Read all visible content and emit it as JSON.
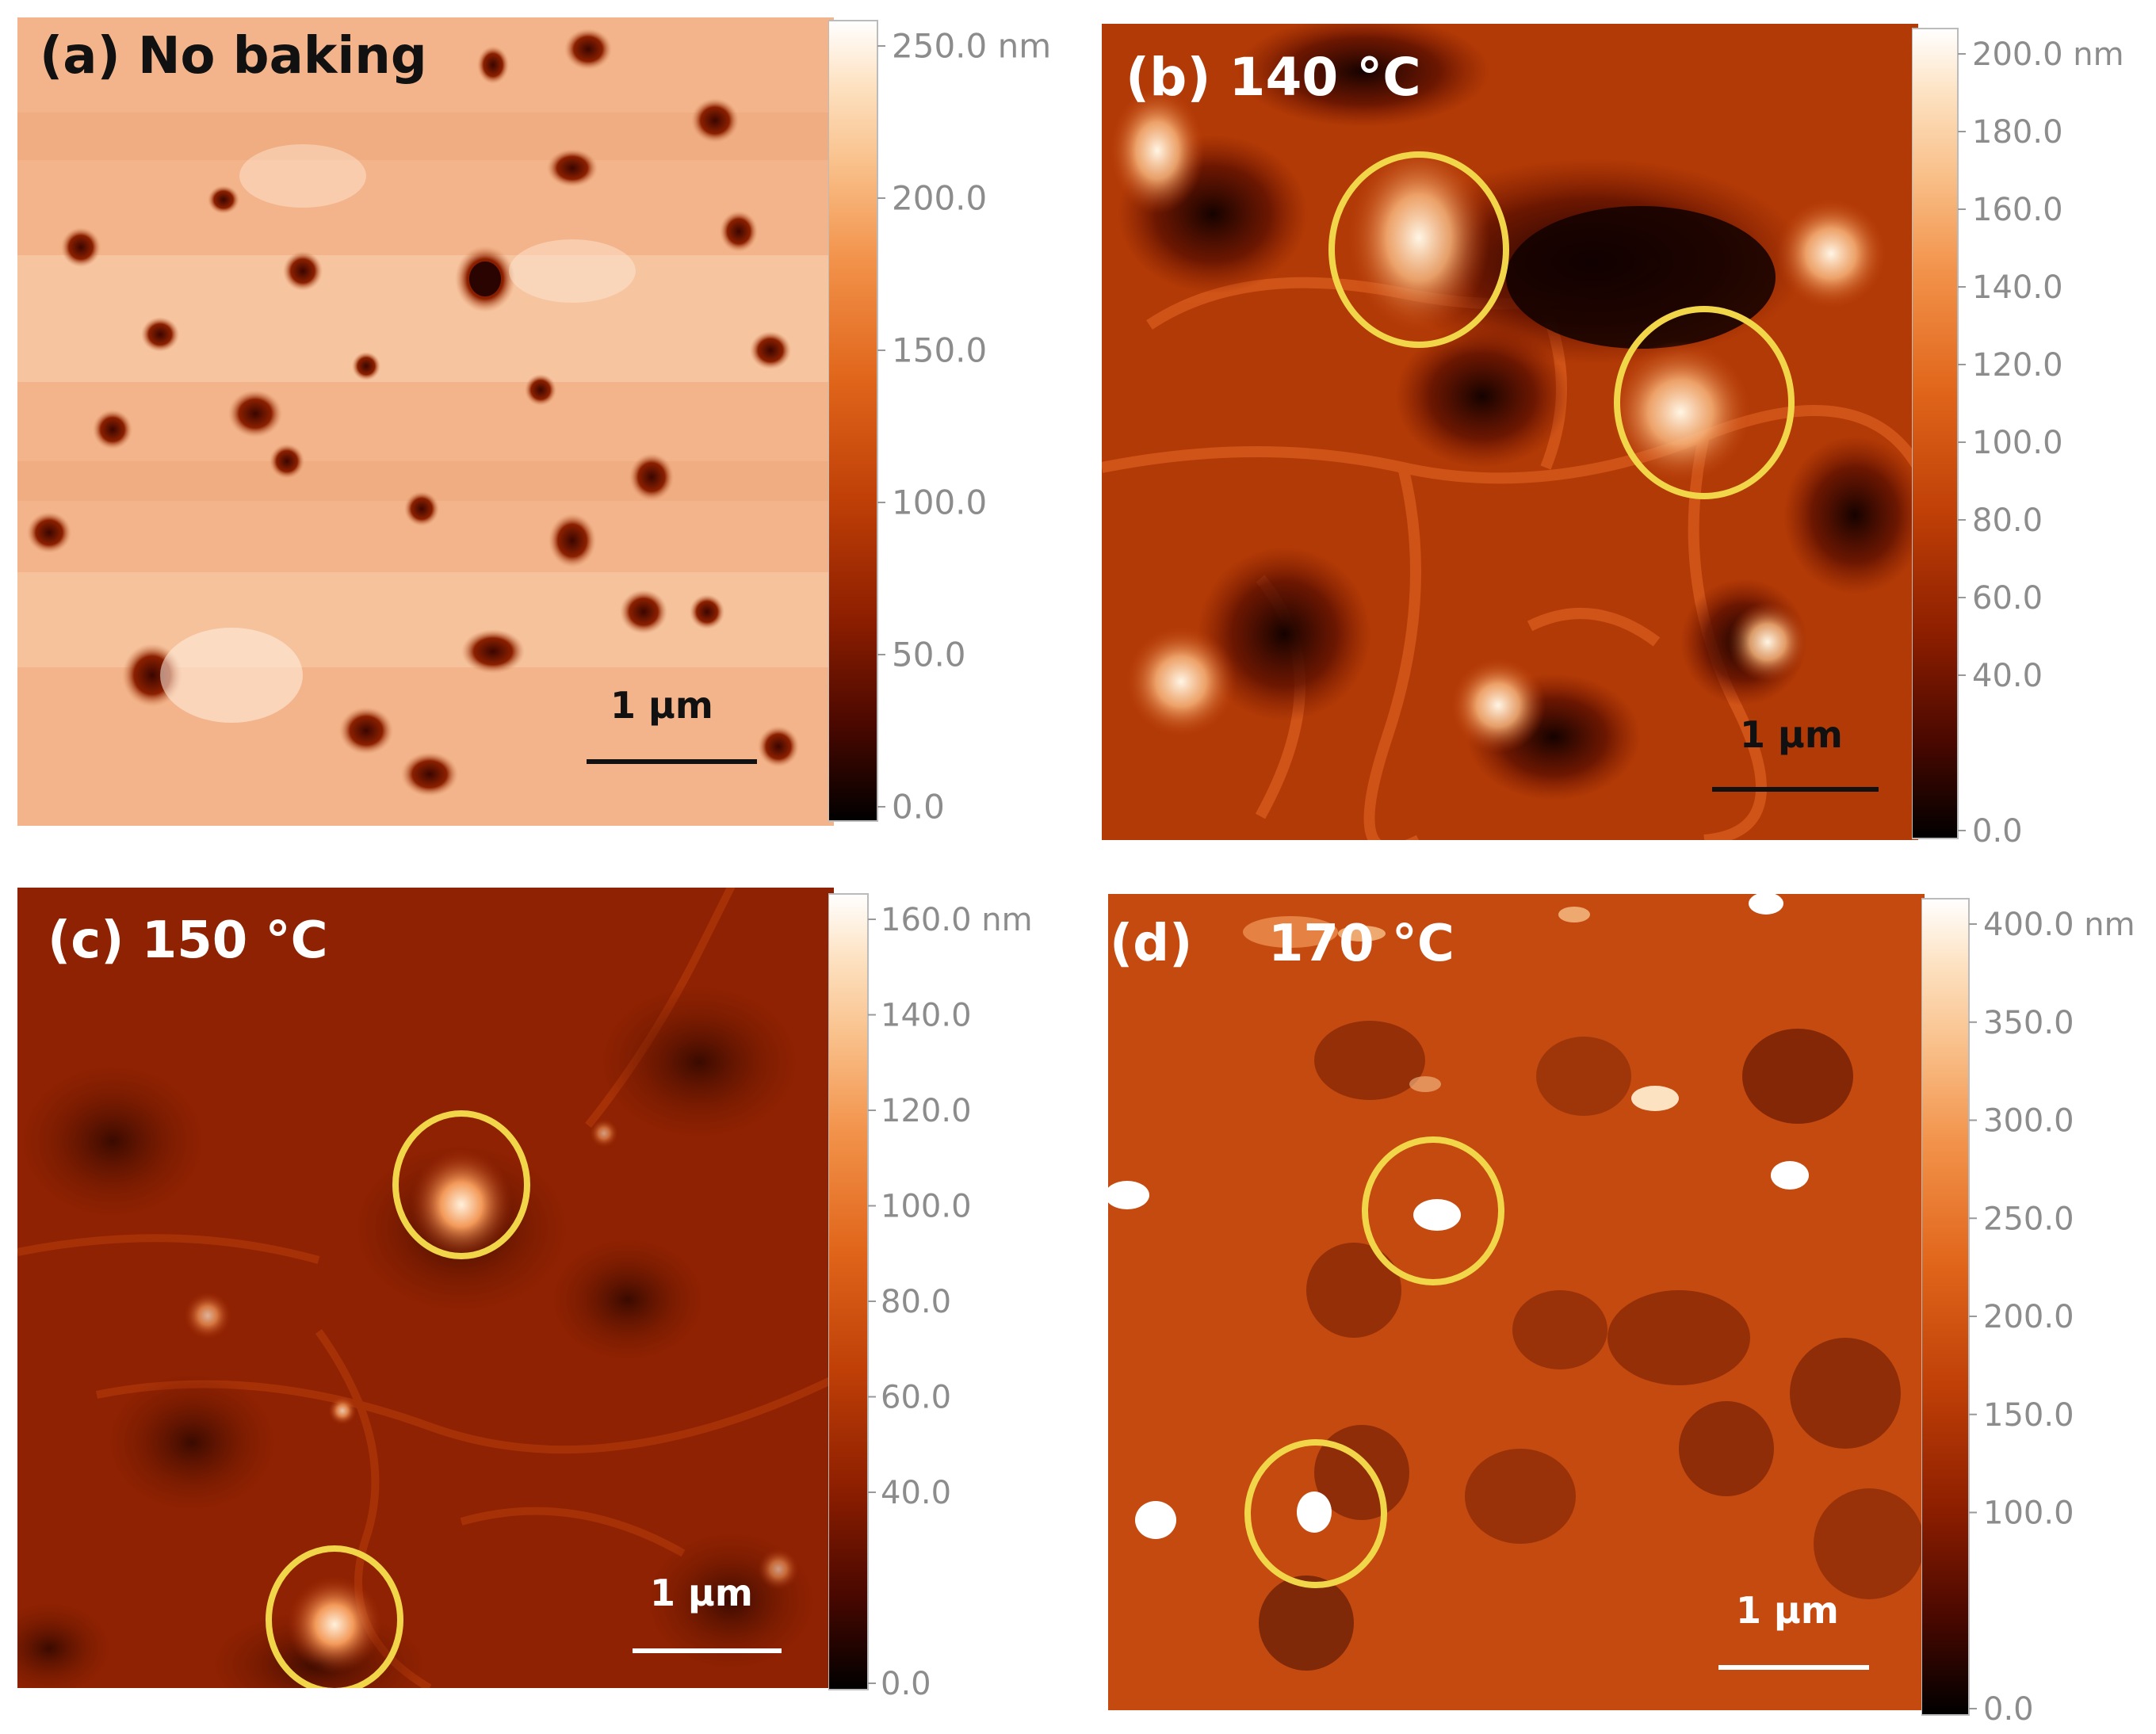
{
  "colors": {
    "colormap": [
      "#000000",
      "#4a0800",
      "#8c1e00",
      "#bf3f07",
      "#e0651a",
      "#f2924a",
      "#f9c08a",
      "#fde2c2",
      "#ffffff"
    ],
    "circle": "#f2d64a",
    "panel_label_dark": "#111111",
    "panel_label_light": "#ffffff",
    "tick_text": "#8c8c8c"
  },
  "panels": [
    {
      "id": "a",
      "label": "(a) No baking",
      "scalebar_label": "1 µm",
      "colorbar": {
        "labels": [
          "250.0 nm",
          "200.0",
          "150.0",
          "100.0",
          "50.0",
          "0.0"
        ],
        "max": 250
      },
      "highlight_circles": 0
    },
    {
      "id": "b",
      "label": "(b) 140 °C",
      "scalebar_label": "1 µm",
      "colorbar": {
        "labels": [
          "200.0 nm",
          "180.0",
          "160.0",
          "140.0",
          "120.0",
          "100.0",
          "80.0",
          "60.0",
          "40.0",
          "0.0"
        ],
        "max": 200
      },
      "highlight_circles": 2
    },
    {
      "id": "c",
      "label": "(c) 150 °C",
      "scalebar_label": "1 µm",
      "colorbar": {
        "labels": [
          "160.0 nm",
          "140.0",
          "120.0",
          "100.0",
          "80.0",
          "60.0",
          "40.0",
          "0.0"
        ],
        "max": 160
      },
      "highlight_circles": 2
    },
    {
      "id": "d",
      "label_parts": [
        "(d)",
        "170 °C"
      ],
      "scalebar_label": "1 µm",
      "colorbar": {
        "labels": [
          "400.0 nm",
          "350.0",
          "300.0",
          "250.0",
          "200.0",
          "150.0",
          "100.0",
          "0.0"
        ],
        "max": 400
      },
      "highlight_circles": 2
    }
  ]
}
